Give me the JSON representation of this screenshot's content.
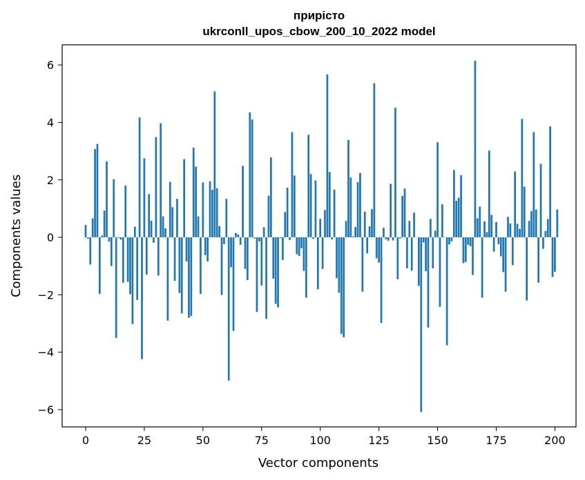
{
  "chart_data": {
    "type": "bar",
    "title": [
      "прирісто",
      "ukrconll_upos_cbow_200_10_2022 model"
    ],
    "xlabel": "Vector components",
    "ylabel": "Components values",
    "xlim": [
      -10,
      209
    ],
    "ylim": [
      -6.6,
      6.7
    ],
    "xticks": [
      0,
      25,
      50,
      75,
      100,
      125,
      150,
      175,
      200
    ],
    "yticks": [
      -6,
      -4,
      -2,
      0,
      2,
      4,
      6
    ],
    "grid": false,
    "bar_color": "#1f77b4",
    "values": [
      0.43,
      -0.05,
      -0.95,
      0.66,
      3.07,
      3.25,
      -1.97,
      0.06,
      0.93,
      2.64,
      -0.15,
      -1.0,
      2.02,
      -3.5,
      -0.02,
      -0.08,
      -1.58,
      1.8,
      -1.55,
      -1.98,
      -3.02,
      0.37,
      -2.18,
      4.17,
      -4.24,
      2.75,
      -1.3,
      1.5,
      0.58,
      -0.19,
      3.49,
      -1.33,
      3.97,
      0.73,
      0.31,
      -2.9,
      1.93,
      1.05,
      -1.52,
      1.34,
      -1.94,
      -2.65,
      2.72,
      -0.84,
      -2.8,
      -2.74,
      3.12,
      2.46,
      0.73,
      -1.97,
      1.91,
      -0.62,
      -0.84,
      1.95,
      1.65,
      5.08,
      1.71,
      0.39,
      -2.01,
      -0.24,
      1.34,
      -4.99,
      -1.04,
      -3.26,
      0.15,
      0.1,
      -0.26,
      2.49,
      -1.1,
      -1.49,
      4.35,
      4.1,
      -0.04,
      -2.6,
      -0.14,
      -1.68,
      0.35,
      -2.84,
      1.45,
      2.78,
      -1.44,
      -2.32,
      -2.44,
      -0.03,
      -0.79,
      0.88,
      1.73,
      -0.09,
      3.66,
      2.15,
      -0.59,
      -0.65,
      -0.38,
      -1.17,
      -2.1,
      3.57,
      2.2,
      -0.05,
      1.98,
      -1.81,
      0.64,
      -1.1,
      0.95,
      5.67,
      2.27,
      -0.07,
      1.66,
      -1.42,
      -1.93,
      -3.36,
      -3.48,
      0.57,
      3.39,
      2.08,
      0.03,
      0.36,
      1.92,
      2.24,
      -1.89,
      0.89,
      -0.56,
      0.38,
      0.98,
      5.36,
      -0.73,
      -0.88,
      -2.98,
      0.33,
      -0.07,
      -0.12,
      1.86,
      -0.11,
      4.51,
      -1.46,
      -0.04,
      1.44,
      1.7,
      -1.08,
      0.57,
      -1.16,
      0.86,
      0.01,
      -1.69,
      -6.08,
      -0.18,
      -1.18,
      -3.14,
      0.64,
      -1.08,
      0.23,
      3.31,
      -2.42,
      1.15,
      -0.01,
      -3.76,
      -0.25,
      -0.14,
      2.34,
      1.27,
      1.38,
      2.16,
      -0.9,
      -0.86,
      -0.26,
      -0.31,
      -1.31,
      6.15,
      0.66,
      1.07,
      -2.1,
      0.56,
      0.18,
      3.02,
      0.78,
      -0.5,
      0.53,
      -0.24,
      -0.66,
      -1.21,
      -1.89,
      0.71,
      0.48,
      -0.97,
      2.29,
      0.47,
      0.29,
      4.12,
      1.76,
      -2.2,
      0.57,
      0.91,
      3.66,
      0.97,
      -1.58,
      2.56,
      -0.4,
      0.22,
      0.63,
      3.86,
      -1.38,
      -1.2,
      0.97
    ]
  }
}
